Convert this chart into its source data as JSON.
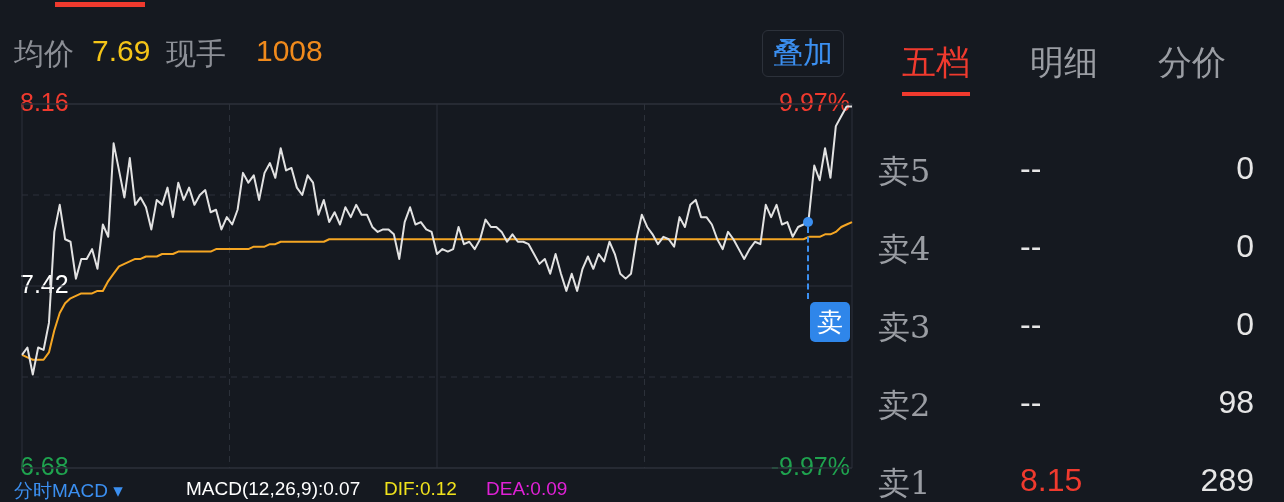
{
  "chart_data": [
    {
      "type": "line",
      "categories": [
        null,
        null,
        null,
        null,
        null,
        null,
        null,
        null,
        null,
        null,
        null,
        null,
        null,
        null,
        null,
        null,
        null,
        null,
        null,
        null,
        null,
        null,
        null,
        null,
        null,
        null,
        null,
        null,
        null,
        null,
        null,
        null,
        null,
        null,
        null,
        null,
        null,
        null,
        null,
        null,
        null,
        null,
        null,
        null,
        null,
        null,
        null,
        null,
        null,
        null,
        null,
        null,
        null,
        null,
        null,
        null,
        null,
        null,
        null,
        null,
        null,
        null,
        null,
        null,
        null,
        null,
        null,
        null,
        null,
        null,
        null,
        null,
        null,
        null,
        null,
        null,
        null,
        null,
        null,
        null,
        null,
        null,
        null,
        null,
        null,
        null,
        null,
        null,
        null,
        null,
        null,
        null,
        null,
        null,
        null,
        null,
        null,
        null,
        null,
        null,
        null,
        null,
        null,
        null,
        null,
        null,
        null,
        null,
        null,
        null,
        null,
        null,
        null,
        null,
        null,
        null,
        null,
        null,
        null,
        null,
        null,
        null,
        null,
        null,
        null,
        null,
        null,
        null,
        null,
        null,
        null,
        null,
        null,
        null,
        null,
        null,
        null,
        null,
        null,
        null,
        null,
        null,
        null,
        null,
        null,
        null,
        null,
        null,
        null,
        null,
        null,
        null,
        null,
        null,
        null
      ],
      "series": [
        {
          "color": "#e2e2e2",
          "values": [
            7.14,
            7.17,
            7.06,
            7.17,
            7.16,
            7.27,
            7.64,
            7.75,
            7.61,
            7.6,
            7.45,
            7.53,
            7.53,
            7.57,
            7.49,
            7.67,
            7.62,
            8.0,
            7.89,
            7.78,
            7.94,
            7.75,
            7.78,
            7.74,
            7.65,
            7.77,
            7.75,
            7.82,
            7.7,
            7.84,
            7.77,
            7.82,
            7.75,
            7.79,
            7.81,
            7.72,
            7.73,
            7.65,
            7.7,
            7.67,
            7.73,
            7.88,
            7.84,
            7.87,
            7.77,
            7.88,
            7.92,
            7.86,
            7.98,
            7.89,
            7.9,
            7.82,
            7.79,
            7.87,
            7.84,
            7.71,
            7.77,
            7.68,
            7.72,
            7.67,
            7.74,
            7.7,
            7.75,
            7.71,
            7.71,
            7.66,
            7.64,
            7.65,
            7.65,
            7.63,
            7.53,
            7.68,
            7.74,
            7.67,
            7.68,
            7.65,
            7.64,
            7.55,
            7.57,
            7.56,
            7.57,
            7.66,
            7.59,
            7.6,
            7.57,
            7.61,
            7.69,
            7.66,
            7.66,
            7.64,
            7.6,
            7.63,
            7.6,
            7.6,
            7.59,
            7.55,
            7.51,
            7.53,
            7.47,
            7.55,
            7.47,
            7.4,
            7.47,
            7.4,
            7.49,
            7.54,
            7.49,
            7.55,
            7.52,
            7.6,
            7.55,
            7.47,
            7.45,
            7.47,
            7.61,
            7.71,
            7.66,
            7.63,
            7.59,
            7.62,
            7.61,
            7.58,
            7.7,
            7.66,
            7.75,
            7.77,
            7.7,
            7.7,
            7.67,
            7.61,
            7.57,
            7.64,
            7.61,
            7.57,
            7.53,
            7.57,
            7.6,
            7.59,
            7.75,
            7.7,
            7.75,
            7.67,
            7.68,
            7.62,
            7.66,
            7.67,
            7.7,
            7.91,
            7.85,
            7.98,
            7.86,
            8.07,
            8.11,
            8.15,
            8.15
          ]
        },
        {
          "color": "#f5a623",
          "values": [
            7.14,
            7.13,
            7.12,
            7.12,
            7.12,
            7.15,
            7.24,
            7.31,
            7.35,
            7.37,
            7.38,
            7.39,
            7.39,
            7.39,
            7.4,
            7.4,
            7.44,
            7.47,
            7.5,
            7.51,
            7.52,
            7.53,
            7.53,
            7.54,
            7.54,
            7.54,
            7.55,
            7.55,
            7.55,
            7.56,
            7.56,
            7.56,
            7.56,
            7.56,
            7.56,
            7.56,
            7.57,
            7.57,
            7.57,
            7.57,
            7.57,
            7.57,
            7.57,
            7.58,
            7.58,
            7.58,
            7.59,
            7.59,
            7.6,
            7.6,
            7.6,
            7.6,
            7.6,
            7.6,
            7.6,
            7.6,
            7.6,
            7.61,
            7.61,
            7.61,
            7.61,
            7.61,
            7.61,
            7.61,
            7.61,
            7.61,
            7.61,
            7.61,
            7.61,
            7.61,
            7.61,
            7.61,
            7.61,
            7.61,
            7.61,
            7.61,
            7.61,
            7.61,
            7.61,
            7.61,
            7.61,
            7.61,
            7.61,
            7.61,
            7.61,
            7.61,
            7.61,
            7.61,
            7.61,
            7.61,
            7.61,
            7.61,
            7.61,
            7.61,
            7.61,
            7.61,
            7.61,
            7.61,
            7.61,
            7.61,
            7.61,
            7.61,
            7.61,
            7.61,
            7.61,
            7.61,
            7.61,
            7.61,
            7.61,
            7.61,
            7.61,
            7.61,
            7.61,
            7.61,
            7.61,
            7.61,
            7.61,
            7.61,
            7.61,
            7.61,
            7.61,
            7.61,
            7.61,
            7.61,
            7.61,
            7.61,
            7.61,
            7.61,
            7.61,
            7.61,
            7.61,
            7.61,
            7.61,
            7.61,
            7.61,
            7.61,
            7.61,
            7.61,
            7.61,
            7.61,
            7.61,
            7.61,
            7.61,
            7.61,
            7.61,
            7.61,
            7.62,
            7.62,
            7.62,
            7.63,
            7.63,
            7.64,
            7.66,
            7.67,
            7.68
          ]
        }
      ],
      "ylim": [
        6.68,
        8.16
      ],
      "yticks": [
        6.68,
        {
          "value": 7.05,
          "label": null
        },
        7.42,
        {
          "value": 7.79,
          "label": null
        },
        8.16
      ],
      "y2lim": [
        -9.97,
        9.97
      ],
      "y2ticks": [
        {
          "value": -9.97,
          "label": "-9.97%"
        },
        {
          "value": 9.97,
          "label": "9.97%"
        }
      ],
      "grid": true,
      "legend": false,
      "marker": "none",
      "line_style": "solid",
      "annotations": [
        "均价",
        "7.69",
        "现手",
        "1008",
        "叠加",
        "分时MACD ▾",
        "MACD(12,26,9):0.07",
        "DIF:0.12",
        "DEA:0.09",
        "卖"
      ]
    },
    {
      "type": "other",
      "annotations": [
        "五档",
        "明细",
        "分价",
        "卖5",
        "--",
        "0",
        "卖4",
        "--",
        "0",
        "卖3",
        "--",
        "0",
        "卖2",
        "--",
        "98",
        "卖1",
        "8.15",
        "289"
      ]
    }
  ]
}
